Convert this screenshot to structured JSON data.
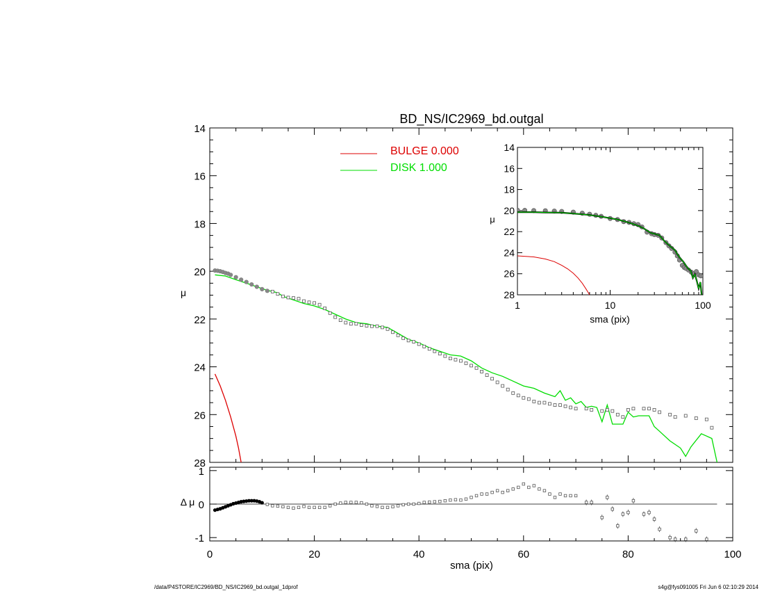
{
  "title": "BD_NS/IC2969_bd.outgal",
  "footer": {
    "left": "/data/P4STORE/IC2969/BD_NS/IC2969_bd.outgal_1dprof",
    "right": "s4g@fys091005  Fri Jun  6 02:10:29 2014"
  },
  "legend": {
    "bulge": {
      "label": "BULGE  0.000",
      "color": "#dd0000"
    },
    "disk": {
      "label": "DISK  1.000",
      "color": "#00dd00"
    }
  },
  "chart_data": [
    {
      "id": "main",
      "type": "line",
      "title": "BD_NS/IC2969_bd.outgal",
      "xlabel": "",
      "ylabel": "μ",
      "xlim": [
        0,
        100
      ],
      "ylim": [
        28,
        14
      ],
      "x_ticks": [
        0,
        20,
        40,
        60,
        80,
        100
      ],
      "y_ticks": [
        14,
        16,
        18,
        20,
        22,
        24,
        26,
        28
      ],
      "observed_color": "#888888",
      "observed": {
        "x": [
          1,
          1.5,
          2,
          2.5,
          3,
          3.5,
          4,
          5,
          6,
          7,
          8,
          9,
          10,
          11,
          12,
          13,
          14,
          15,
          16,
          17,
          18,
          19,
          20,
          21,
          22,
          23,
          24,
          25,
          26,
          27,
          28,
          29,
          30,
          31,
          32,
          33,
          34,
          35,
          36,
          37,
          38,
          39,
          40,
          41,
          42,
          43,
          44,
          45,
          46,
          47,
          48,
          49,
          50,
          51,
          52,
          53,
          54,
          55,
          56,
          57,
          58,
          59,
          60,
          61,
          62,
          63,
          64,
          65,
          66,
          67,
          68,
          69,
          70,
          72,
          73,
          75,
          76,
          77,
          78,
          79,
          80,
          81,
          83,
          84,
          85,
          86,
          88,
          89,
          91,
          93,
          95,
          96
        ],
        "y": [
          19.97,
          19.98,
          20.0,
          20.03,
          20.07,
          20.1,
          20.15,
          20.25,
          20.35,
          20.45,
          20.55,
          20.65,
          20.75,
          20.82,
          20.85,
          20.95,
          21.05,
          21.1,
          21.12,
          21.15,
          21.25,
          21.3,
          21.33,
          21.4,
          21.55,
          21.75,
          21.92,
          22.05,
          22.15,
          22.2,
          22.2,
          22.25,
          22.28,
          22.3,
          22.3,
          22.35,
          22.42,
          22.55,
          22.68,
          22.8,
          22.9,
          22.95,
          23.05,
          23.15,
          23.25,
          23.35,
          23.45,
          23.55,
          23.65,
          23.7,
          23.75,
          23.85,
          23.95,
          24.05,
          24.2,
          24.35,
          24.5,
          24.65,
          24.8,
          24.95,
          25.1,
          25.2,
          25.3,
          25.35,
          25.45,
          25.5,
          25.5,
          25.55,
          25.6,
          25.6,
          25.65,
          25.7,
          25.75,
          25.75,
          25.8,
          25.85,
          25.8,
          25.85,
          26.0,
          26.1,
          25.8,
          25.75,
          25.75,
          25.75,
          25.8,
          25.9,
          26.0,
          26.1,
          26.05,
          26.15,
          26.2,
          26.55
        ]
      },
      "series": [
        {
          "name": "DISK  1.000",
          "color": "#00dd00",
          "x": [
            1,
            3,
            5,
            7,
            9,
            11,
            12,
            13,
            14,
            16,
            18,
            20,
            22,
            24,
            26,
            28,
            30,
            32,
            34,
            36,
            38,
            40,
            42,
            44,
            46,
            48,
            50,
            52,
            54,
            56,
            58,
            60,
            62,
            64,
            66,
            67,
            68,
            69,
            70,
            71,
            72,
            73,
            74,
            75,
            76,
            77,
            78,
            79,
            80,
            81,
            82,
            83,
            84,
            85,
            86,
            88,
            90,
            91,
            92,
            94,
            96,
            97
          ],
          "y": [
            20.15,
            20.2,
            20.35,
            20.5,
            20.65,
            20.8,
            20.85,
            20.9,
            21.05,
            21.2,
            21.35,
            21.45,
            21.6,
            21.8,
            22.0,
            22.15,
            22.2,
            22.3,
            22.35,
            22.6,
            22.85,
            23.0,
            23.2,
            23.35,
            23.5,
            23.55,
            23.75,
            24.05,
            24.25,
            24.4,
            24.6,
            24.8,
            24.9,
            25.1,
            25.25,
            25.0,
            25.4,
            25.3,
            25.55,
            25.45,
            25.7,
            25.65,
            25.7,
            26.3,
            25.6,
            26.4,
            26.4,
            26.4,
            25.9,
            26.1,
            26.05,
            26.05,
            26.05,
            26.5,
            26.7,
            27.1,
            27.4,
            27.75,
            27.35,
            26.8,
            27.0,
            28.0
          ]
        },
        {
          "name": "BULGE  0.000",
          "color": "#dd0000",
          "x": [
            1,
            2,
            3,
            4,
            5,
            5.5,
            6
          ],
          "y": [
            24.3,
            24.8,
            25.4,
            26.1,
            26.9,
            27.4,
            28.0
          ]
        }
      ]
    },
    {
      "id": "residual",
      "type": "scatter",
      "xlabel": "sma (pix)",
      "ylabel": "Δ μ",
      "xlim": [
        0,
        100
      ],
      "ylim": [
        -1.1,
        1.1
      ],
      "x_ticks": [
        0,
        20,
        40,
        60,
        80,
        100
      ],
      "y_ticks": [
        -1,
        0,
        1
      ],
      "reference_line_y": 0,
      "reference_line_xlim": [
        0,
        97
      ],
      "x": [
        1,
        1.5,
        2,
        2.5,
        3,
        3.5,
        4,
        4.5,
        5,
        5.5,
        6,
        6.5,
        7,
        7.5,
        8,
        8.5,
        9,
        9.5,
        10,
        11,
        12,
        13,
        14,
        15,
        16,
        17,
        18,
        19,
        20,
        21,
        22,
        23,
        24,
        25,
        26,
        27,
        28,
        29,
        30,
        31,
        32,
        33,
        34,
        35,
        36,
        37,
        38,
        39,
        40,
        41,
        42,
        43,
        44,
        45,
        46,
        47,
        48,
        49,
        50,
        51,
        52,
        53,
        54,
        55,
        56,
        57,
        58,
        59,
        60,
        61,
        62,
        63,
        64,
        65,
        66,
        67,
        68,
        69,
        70,
        72,
        73,
        75,
        76,
        77,
        78,
        79,
        80,
        81,
        83,
        84,
        85,
        86,
        88,
        89,
        91,
        93,
        95
      ],
      "y": [
        -0.18,
        -0.16,
        -0.14,
        -0.11,
        -0.08,
        -0.05,
        -0.02,
        0.01,
        0.03,
        0.05,
        0.07,
        0.08,
        0.09,
        0.1,
        0.1,
        0.1,
        0.09,
        0.07,
        0.04,
        -0.01,
        -0.05,
        -0.06,
        -0.08,
        -0.1,
        -0.12,
        -0.1,
        -0.07,
        -0.1,
        -0.1,
        -0.1,
        -0.1,
        -0.05,
        0.0,
        0.03,
        0.05,
        0.05,
        0.05,
        0.04,
        0.0,
        -0.05,
        -0.07,
        -0.1,
        -0.1,
        -0.08,
        -0.05,
        -0.02,
        0.0,
        0.0,
        0.02,
        0.05,
        0.06,
        0.07,
        0.08,
        0.1,
        0.12,
        0.13,
        0.12,
        0.15,
        0.2,
        0.25,
        0.3,
        0.3,
        0.35,
        0.4,
        0.35,
        0.4,
        0.45,
        0.5,
        0.6,
        0.5,
        0.55,
        0.45,
        0.4,
        0.3,
        0.2,
        0.3,
        0.25,
        0.25,
        0.25,
        0.05,
        0.05,
        -0.4,
        0.2,
        -0.15,
        -0.65,
        -0.3,
        -0.25,
        0.1,
        -0.3,
        -0.25,
        -0.45,
        -0.75,
        -1.0,
        -1.05,
        -1.05,
        -0.8,
        -1.05
      ]
    },
    {
      "id": "inset",
      "type": "line",
      "xlabel": "sma (pix)",
      "ylabel": "μ",
      "x_scale": "log",
      "xlim": [
        1,
        100
      ],
      "ylim": [
        28,
        14
      ],
      "x_ticks": [
        1,
        10,
        100
      ],
      "y_ticks": [
        14,
        16,
        18,
        20,
        22,
        24,
        26,
        28
      ],
      "observed": {
        "x": [
          1,
          1.2,
          1.5,
          2,
          2.5,
          3,
          4,
          5,
          6,
          7,
          8,
          10,
          12,
          14,
          16,
          18,
          20,
          22,
          25,
          28,
          30,
          33,
          36,
          40,
          43,
          46,
          50,
          53,
          56,
          60,
          63,
          66,
          70,
          75,
          80,
          85,
          90,
          95
        ],
        "y": [
          19.97,
          19.98,
          20.0,
          20.02,
          20.05,
          20.08,
          20.15,
          20.25,
          20.35,
          20.45,
          20.55,
          20.75,
          20.85,
          21.05,
          21.12,
          21.25,
          21.33,
          21.55,
          22.05,
          22.2,
          22.28,
          22.35,
          22.6,
          23.05,
          23.35,
          23.6,
          23.95,
          24.3,
          24.7,
          25.2,
          25.4,
          25.5,
          25.65,
          25.85,
          26.0,
          25.8,
          26.1,
          26.2
        ]
      },
      "series": [
        {
          "name": "DISK  1.000",
          "color": "#00dd00",
          "x": [
            1,
            1.5,
            2,
            3,
            4,
            5,
            6,
            8,
            10,
            12,
            14,
            16,
            18,
            20,
            22,
            24,
            26,
            28,
            30,
            34,
            38,
            42,
            46,
            50,
            54,
            58,
            62,
            66,
            70,
            74,
            78,
            82,
            86,
            90,
            94,
            97
          ],
          "y": [
            20.15,
            20.15,
            20.18,
            20.2,
            20.28,
            20.35,
            20.42,
            20.58,
            20.72,
            20.85,
            21.0,
            21.15,
            21.3,
            21.45,
            21.6,
            21.8,
            22.0,
            22.15,
            22.2,
            22.35,
            22.85,
            23.2,
            23.5,
            23.75,
            24.25,
            24.6,
            24.9,
            25.25,
            25.55,
            25.7,
            26.4,
            26.05,
            26.7,
            27.4,
            26.8,
            28.0
          ]
        },
        {
          "name": "BULGE  0.000",
          "color": "#dd0000",
          "x": [
            1,
            1.5,
            2,
            2.5,
            3,
            3.5,
            4,
            4.5,
            5,
            5.5,
            6
          ],
          "y": [
            24.3,
            24.4,
            24.6,
            24.85,
            25.2,
            25.55,
            25.95,
            26.4,
            26.9,
            27.45,
            28.0
          ]
        }
      ]
    }
  ]
}
